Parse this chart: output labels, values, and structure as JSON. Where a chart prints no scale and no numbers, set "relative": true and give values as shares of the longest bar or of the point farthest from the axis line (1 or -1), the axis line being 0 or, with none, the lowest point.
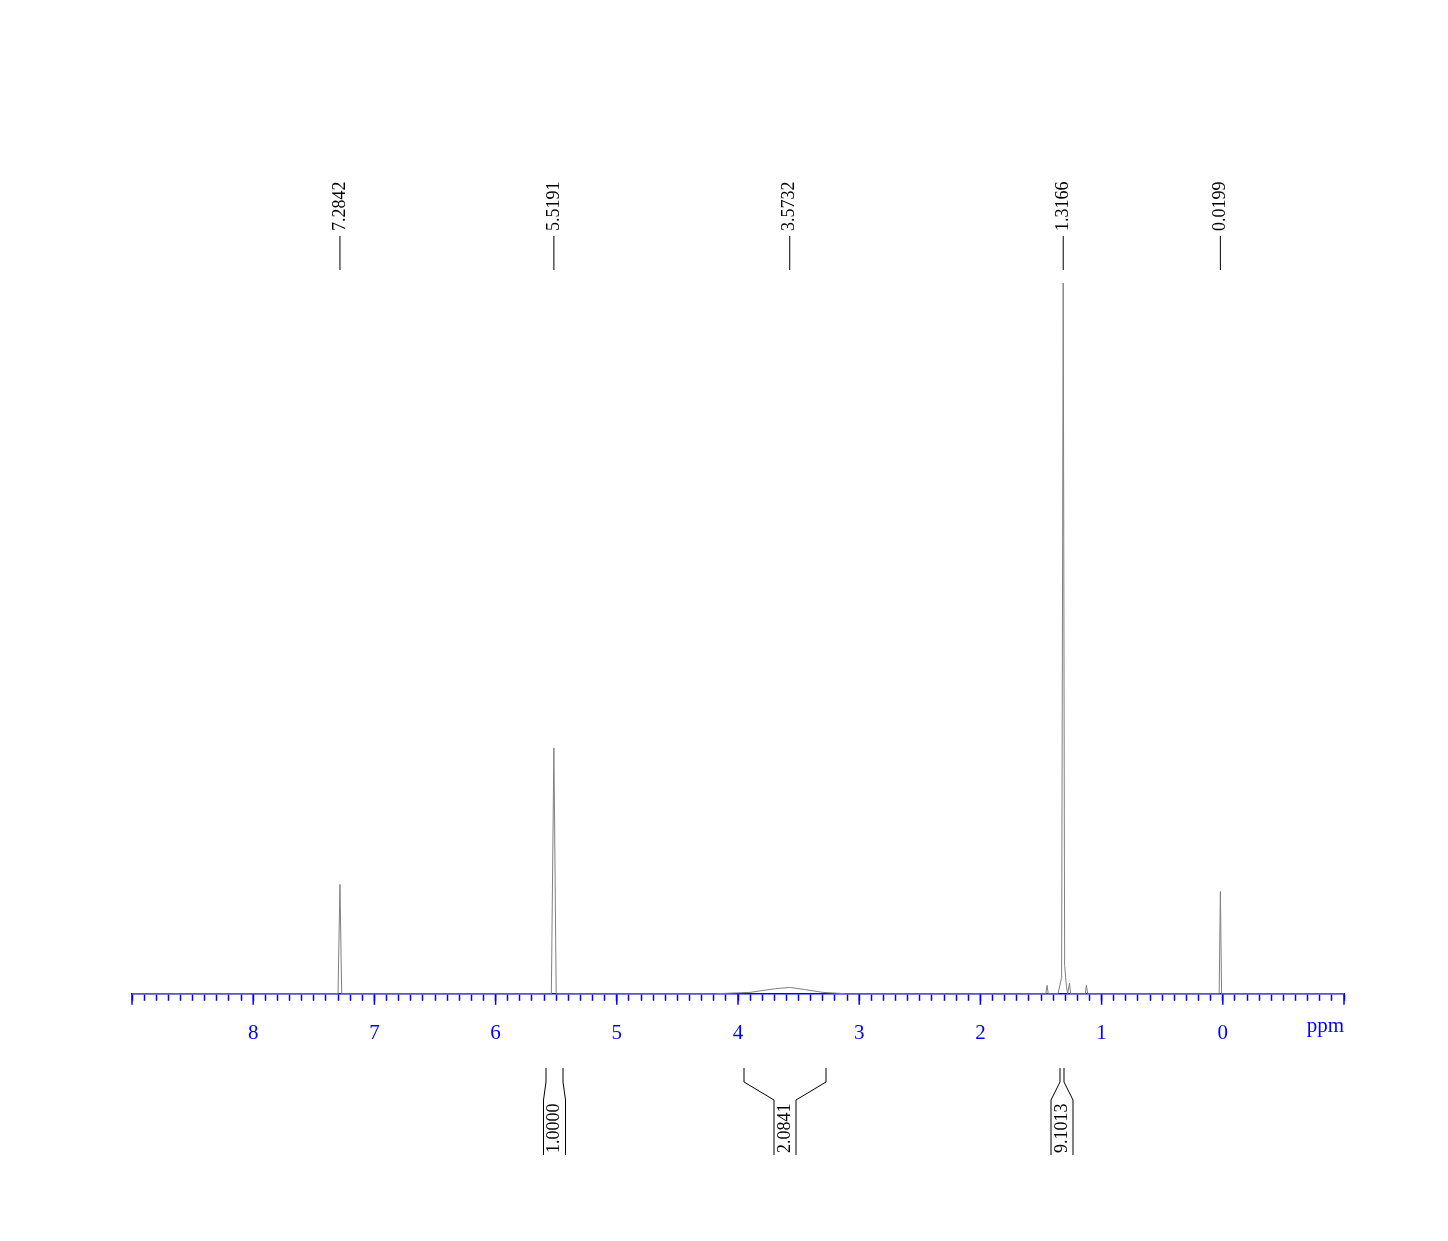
{
  "chart_data": {
    "type": "line",
    "relative": true,
    "xlabel": "ppm",
    "xlim": [
      9.0,
      -1.0
    ],
    "xticks": [
      {
        "value": 9.0,
        "label": null
      },
      {
        "value": 8.9,
        "label": null
      },
      {
        "value": 8.8,
        "label": null
      },
      {
        "value": 8.7,
        "label": null
      },
      {
        "value": 8.6,
        "label": null
      },
      {
        "value": 8.5,
        "label": null
      },
      {
        "value": 8.4,
        "label": null
      },
      {
        "value": 8.3,
        "label": null
      },
      {
        "value": 8.2,
        "label": null
      },
      {
        "value": 8.1,
        "label": null
      },
      8,
      {
        "value": 7.9,
        "label": null
      },
      {
        "value": 7.8,
        "label": null
      },
      {
        "value": 7.7,
        "label": null
      },
      {
        "value": 7.6,
        "label": null
      },
      {
        "value": 7.5,
        "label": null
      },
      {
        "value": 7.4,
        "label": null
      },
      {
        "value": 7.3,
        "label": null
      },
      {
        "value": 7.2,
        "label": null
      },
      {
        "value": 7.1,
        "label": null
      },
      7,
      {
        "value": 6.9,
        "label": null
      },
      {
        "value": 6.8,
        "label": null
      },
      {
        "value": 6.7,
        "label": null
      },
      {
        "value": 6.6,
        "label": null
      },
      {
        "value": 6.5,
        "label": null
      },
      {
        "value": 6.4,
        "label": null
      },
      {
        "value": 6.3,
        "label": null
      },
      {
        "value": 6.2,
        "label": null
      },
      {
        "value": 6.1,
        "label": null
      },
      6,
      {
        "value": 5.9,
        "label": null
      },
      {
        "value": 5.8,
        "label": null
      },
      {
        "value": 5.7,
        "label": null
      },
      {
        "value": 5.6,
        "label": null
      },
      {
        "value": 5.5,
        "label": null
      },
      {
        "value": 5.4,
        "label": null
      },
      {
        "value": 5.3,
        "label": null
      },
      {
        "value": 5.2,
        "label": null
      },
      {
        "value": 5.1,
        "label": null
      },
      5,
      {
        "value": 4.9,
        "label": null
      },
      {
        "value": 4.8,
        "label": null
      },
      {
        "value": 4.7,
        "label": null
      },
      {
        "value": 4.6,
        "label": null
      },
      {
        "value": 4.5,
        "label": null
      },
      {
        "value": 4.4,
        "label": null
      },
      {
        "value": 4.3,
        "label": null
      },
      {
        "value": 4.2,
        "label": null
      },
      {
        "value": 4.1,
        "label": null
      },
      4,
      {
        "value": 3.9,
        "label": null
      },
      {
        "value": 3.8,
        "label": null
      },
      {
        "value": 3.7,
        "label": null
      },
      {
        "value": 3.6,
        "label": null
      },
      {
        "value": 3.5,
        "label": null
      },
      {
        "value": 3.4,
        "label": null
      },
      {
        "value": 3.3,
        "label": null
      },
      {
        "value": 3.2,
        "label": null
      },
      {
        "value": 3.1,
        "label": null
      },
      3,
      {
        "value": 2.9,
        "label": null
      },
      {
        "value": 2.8,
        "label": null
      },
      {
        "value": 2.7,
        "label": null
      },
      {
        "value": 2.6,
        "label": null
      },
      {
        "value": 2.5,
        "label": null
      },
      {
        "value": 2.4,
        "label": null
      },
      {
        "value": 2.3,
        "label": null
      },
      {
        "value": 2.2,
        "label": null
      },
      {
        "value": 2.1,
        "label": null
      },
      2,
      {
        "value": 1.9,
        "label": null
      },
      {
        "value": 1.8,
        "label": null
      },
      {
        "value": 1.7,
        "label": null
      },
      {
        "value": 1.6,
        "label": null
      },
      {
        "value": 1.5,
        "label": null
      },
      {
        "value": 1.4,
        "label": null
      },
      {
        "value": 1.3,
        "label": null
      },
      {
        "value": 1.2,
        "label": null
      },
      {
        "value": 1.1,
        "label": null
      },
      1,
      {
        "value": 0.9,
        "label": null
      },
      {
        "value": 0.8,
        "label": null
      },
      {
        "value": 0.7,
        "label": null
      },
      {
        "value": 0.6,
        "label": null
      },
      {
        "value": 0.5,
        "label": null
      },
      {
        "value": 0.4,
        "label": null
      },
      {
        "value": 0.3,
        "label": null
      },
      {
        "value": 0.2,
        "label": null
      },
      {
        "value": 0.1,
        "label": null
      },
      0,
      {
        "value": -0.1,
        "label": null
      },
      {
        "value": -0.2,
        "label": null
      },
      {
        "value": -0.3,
        "label": null
      },
      {
        "value": -0.4,
        "label": null
      },
      {
        "value": -0.5,
        "label": null
      },
      {
        "value": -0.6,
        "label": null
      },
      {
        "value": -0.7,
        "label": null
      },
      {
        "value": -0.8,
        "label": null
      },
      {
        "value": -0.9,
        "label": null
      },
      {
        "value": -1.0,
        "label": null
      }
    ],
    "series": [
      {
        "color": "#808080",
        "x": [
          9.0,
          7.3,
          7.2842,
          7.27,
          5.54,
          5.5191,
          5.5,
          4.2,
          3.9,
          3.7,
          3.5732,
          3.45,
          3.3,
          3.1,
          1.46,
          1.45,
          1.44,
          1.36,
          1.33,
          1.3166,
          1.305,
          1.29,
          1.28,
          1.265,
          1.255,
          1.135,
          1.125,
          1.115,
          0.03,
          0.0199,
          0.01,
          -1.0
        ],
        "values": [
          0,
          0,
          0.154,
          0,
          0,
          0.346,
          0,
          0,
          0.002,
          0.007,
          0.009,
          0.006,
          0.002,
          0,
          0,
          0.012,
          0,
          0,
          0.023,
          1,
          0.04,
          0.01,
          0,
          0.015,
          0,
          0,
          0.012,
          0,
          0,
          0.144,
          0,
          0
        ]
      }
    ],
    "annotations": [
      {
        "text": "7.2842",
        "x": 7.2842
      },
      {
        "text": "5.5191",
        "x": 5.5191
      },
      {
        "text": "3.5732",
        "x": 3.5732
      },
      {
        "text": "1.3166",
        "x": 1.3166
      },
      {
        "text": "0.0199",
        "x": 0.0199
      },
      "1.0000",
      "2.0841",
      "9.1013"
    ]
  }
}
